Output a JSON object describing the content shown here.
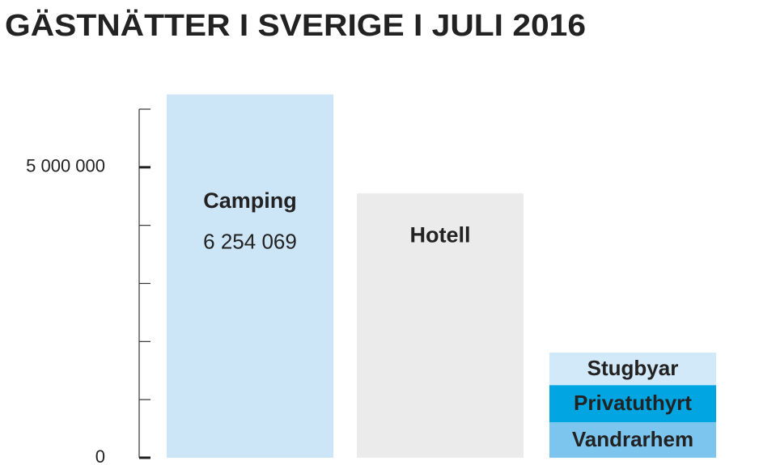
{
  "chart_data": {
    "type": "bar",
    "title": "GÄSTNÄTTER I SVERIGE I JULI 2016",
    "ylim": [
      0,
      6000000
    ],
    "yticks": [
      0,
      {
        "value": 5000000,
        "label": "5 000 000"
      }
    ],
    "minor_yticks": [
      1000000,
      2000000,
      3000000,
      4000000,
      6000000
    ],
    "bars": [
      {
        "name": "Camping",
        "value": 6254069,
        "value_label": "6 254 069",
        "color": "#cce5f7"
      },
      {
        "name": "Hotell",
        "value": 4550000,
        "color": "#ebebeb"
      },
      {
        "segments": [
          {
            "name": "Vandrarhem",
            "value": 610000,
            "color": "#7cc5ef"
          },
          {
            "name": "Privatuthyrt",
            "value": 640000,
            "color": "#00a5e2"
          },
          {
            "name": "Stugbyar",
            "value": 560000,
            "color": "#d2e9f9"
          }
        ]
      }
    ]
  }
}
